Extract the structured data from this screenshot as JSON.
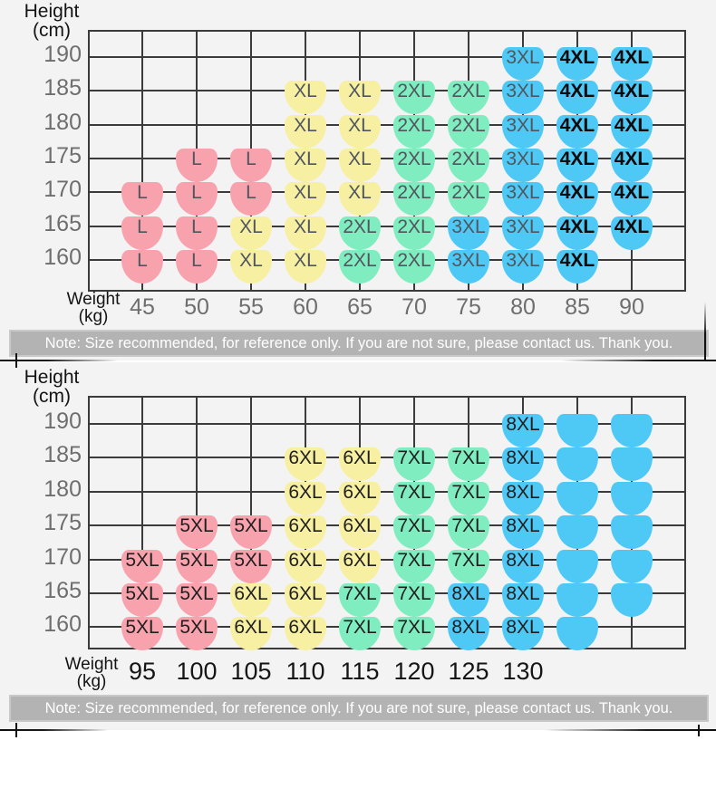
{
  "note_text": "Note: Size recommended, for reference only. If you are not sure, please contact us. Thank you.",
  "size_colors": {
    "pink": "#f8a2ad",
    "yellow": "#f7f0a2",
    "green": "#80edc0",
    "blue": "#4ec9f5"
  },
  "size_color_map": {
    "L": "pink",
    "XL": "yellow",
    "2XL": "green",
    "3XL": "blue",
    "4XL": "blue",
    "5XL": "pink",
    "6XL": "yellow",
    "7XL": "green",
    "8XL": "blue",
    "": "blue"
  },
  "chart_data": [
    {
      "type": "heatmap",
      "title": "Size chart 45-90 kg",
      "ylabel": "Height (cm)",
      "ylabel_lines": [
        "Height",
        "(cm)"
      ],
      "xlabel": "Weight (kg)",
      "xlabel_lines": [
        "Weight",
        "(kg)"
      ],
      "x_tick_labels": [
        "45",
        "50",
        "55",
        "60",
        "65",
        "70",
        "75",
        "80",
        "85",
        "90"
      ],
      "y_tick_labels": [
        "190",
        "185",
        "180",
        "175",
        "170",
        "165",
        "160"
      ],
      "note": "Note: Size recommended, for reference only. If you are not sure, please contact us. Thank you.",
      "cells": [
        [
          null,
          null,
          null,
          null,
          null,
          null,
          null,
          "3XL",
          "4XL",
          "4XL"
        ],
        [
          null,
          null,
          null,
          "XL",
          "XL",
          "2XL",
          "2XL",
          "3XL",
          "4XL",
          "4XL"
        ],
        [
          null,
          null,
          null,
          "XL",
          "XL",
          "2XL",
          "2XL",
          "3XL",
          "4XL",
          "4XL"
        ],
        [
          null,
          "L",
          "L",
          "XL",
          "XL",
          "2XL",
          "2XL",
          "3XL",
          "4XL",
          "4XL"
        ],
        [
          "L",
          "L",
          "L",
          "XL",
          "XL",
          "2XL",
          "2XL",
          "3XL",
          "4XL",
          "4XL"
        ],
        [
          "L",
          "L",
          "XL",
          "XL",
          "2XL",
          "2XL",
          "3XL",
          "3XL",
          "4XL",
          "4XL"
        ],
        [
          "L",
          "L",
          "XL",
          "XL",
          "2XL",
          "2XL",
          "3XL",
          "3XL",
          "4XL",
          null
        ]
      ]
    },
    {
      "type": "heatmap",
      "title": "Size chart 95-130 kg",
      "ylabel": "Height (cm)",
      "ylabel_lines": [
        "Height",
        "(cm)"
      ],
      "xlabel": "Weight (kg)",
      "xlabel_lines": [
        "Weight",
        "(kg)"
      ],
      "x_tick_labels": [
        "95",
        "100",
        "105",
        "110",
        "115",
        "120",
        "125",
        "130",
        "",
        ""
      ],
      "y_tick_labels": [
        "190",
        "185",
        "180",
        "175",
        "170",
        "165",
        "160"
      ],
      "note": "Note: Size recommended, for reference only. If you are not sure, please contact us. Thank you.",
      "cells": [
        [
          null,
          null,
          null,
          null,
          null,
          null,
          null,
          "8XL",
          "",
          ""
        ],
        [
          null,
          null,
          null,
          "6XL",
          "6XL",
          "7XL",
          "7XL",
          "8XL",
          "",
          ""
        ],
        [
          null,
          null,
          null,
          "6XL",
          "6XL",
          "7XL",
          "7XL",
          "8XL",
          "",
          ""
        ],
        [
          null,
          "5XL",
          "5XL",
          "6XL",
          "6XL",
          "7XL",
          "7XL",
          "8XL",
          "",
          ""
        ],
        [
          "5XL",
          "5XL",
          "5XL",
          "6XL",
          "6XL",
          "7XL",
          "7XL",
          "8XL",
          "",
          ""
        ],
        [
          "5XL",
          "5XL",
          "6XL",
          "6XL",
          "7XL",
          "7XL",
          "8XL",
          "8XL",
          "",
          ""
        ],
        [
          "5XL",
          "5XL",
          "6XL",
          "6XL",
          "7XL",
          "7XL",
          "8XL",
          "8XL",
          "",
          null
        ]
      ]
    }
  ]
}
